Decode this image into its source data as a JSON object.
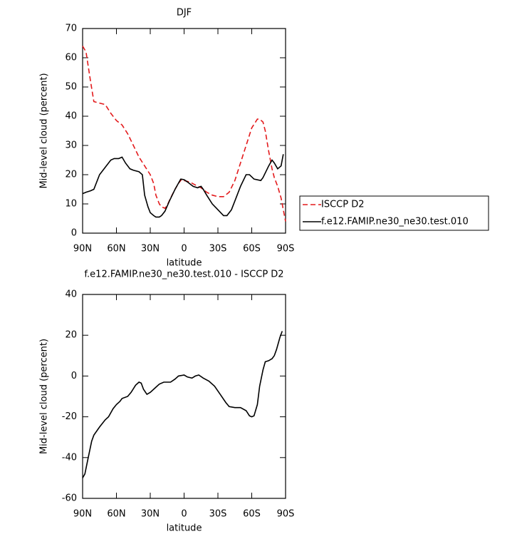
{
  "chart_data": [
    {
      "type": "line",
      "title": "DJF",
      "x_label": "latitude",
      "y_label": "Mid-level cloud (percent)",
      "xlim": [
        90,
        -90
      ],
      "xticks": [
        {
          "value": 90,
          "label": "90N"
        },
        {
          "value": 60,
          "label": "60N"
        },
        {
          "value": 30,
          "label": "30N"
        },
        0,
        {
          "value": -30,
          "label": "30S"
        },
        {
          "value": -60,
          "label": "60S"
        },
        {
          "value": -90,
          "label": "90S"
        }
      ],
      "ylim": [
        0,
        70
      ],
      "yticks": [
        0,
        10,
        20,
        30,
        40,
        50,
        60,
        70
      ],
      "legend": "right",
      "series": [
        {
          "name": "ISCCP D2",
          "color": "#e31a1c",
          "line_style": "dashed",
          "x": [
            90,
            87,
            83,
            80,
            75,
            70,
            65,
            60,
            55,
            50,
            45,
            40,
            35,
            30,
            27,
            25,
            22,
            20,
            17,
            15,
            12,
            8,
            5,
            2,
            0,
            -5,
            -10,
            -15,
            -20,
            -25,
            -30,
            -35,
            -40,
            -45,
            -50,
            -55,
            -60,
            -65,
            -67,
            -70,
            -72,
            -75,
            -78,
            -80,
            -83,
            -86,
            -89,
            -90
          ],
          "values": [
            64,
            62,
            52,
            45,
            44.5,
            44,
            41,
            38.5,
            37,
            34,
            30,
            26,
            23,
            20,
            17,
            13,
            10,
            9,
            8.5,
            9.5,
            12,
            15,
            17,
            18.5,
            18,
            17.5,
            16.5,
            15.5,
            14,
            13,
            12.5,
            12.5,
            14,
            18,
            24,
            30,
            36,
            39,
            39,
            38,
            35,
            28,
            22,
            19,
            16,
            12,
            6,
            4
          ]
        },
        {
          "name": "f.e12.FAMIP.ne30_ne30.test.010",
          "color": "#000000",
          "line_style": "solid",
          "x": [
            90,
            87,
            83,
            80,
            77,
            75,
            70,
            65,
            62,
            58,
            55,
            52,
            48,
            45,
            40,
            37,
            35,
            32,
            30,
            27,
            25,
            22,
            20,
            17,
            13,
            8,
            3,
            0,
            -3,
            -8,
            -12,
            -15,
            -17,
            -20,
            -25,
            -30,
            -35,
            -38,
            -42,
            -45,
            -50,
            -55,
            -58,
            -62,
            -68,
            -70,
            -75,
            -78,
            -80,
            -83,
            -86,
            -88
          ],
          "values": [
            13.5,
            14,
            14.5,
            15,
            18,
            20,
            22.5,
            25,
            25.5,
            25.5,
            26,
            24,
            22,
            21.5,
            21,
            20,
            13,
            9,
            7,
            6,
            5.5,
            5.5,
            6,
            7.5,
            11,
            15,
            18.5,
            18.3,
            17.5,
            16,
            15.5,
            16,
            15,
            13,
            10,
            8,
            6,
            6,
            8,
            11,
            16,
            20,
            20,
            18.5,
            18,
            19,
            23,
            25,
            24,
            22,
            23,
            27
          ]
        }
      ]
    },
    {
      "type": "line",
      "title": "f.e12.FAMIP.ne30_ne30.test.010 - ISCCP D2",
      "x_label": "latitude",
      "y_label": "Mid-level cloud (percent)",
      "xlim": [
        90,
        -90
      ],
      "xticks": [
        {
          "value": 90,
          "label": "90N"
        },
        {
          "value": 60,
          "label": "60N"
        },
        {
          "value": 30,
          "label": "30N"
        },
        0,
        {
          "value": -30,
          "label": "30S"
        },
        {
          "value": -60,
          "label": "60S"
        },
        {
          "value": -90,
          "label": "90S"
        }
      ],
      "ylim": [
        -60,
        40
      ],
      "yticks": [
        -60,
        -40,
        -20,
        0,
        20,
        40
      ],
      "series": [
        {
          "color": "#000000",
          "line_style": "solid",
          "x": [
            90,
            88,
            85,
            82,
            80,
            75,
            70,
            67,
            63,
            60,
            57,
            55,
            50,
            47,
            43,
            40,
            38,
            36,
            33,
            30,
            25,
            22,
            18,
            12,
            8,
            5,
            0,
            -3,
            -7,
            -10,
            -13,
            -17,
            -22,
            -27,
            -32,
            -37,
            -40,
            -45,
            -50,
            -55,
            -58,
            -60,
            -62,
            -65,
            -67,
            -70,
            -72,
            -75,
            -78,
            -80,
            -82,
            -85,
            -87
          ],
          "values": [
            -50,
            -48,
            -40,
            -32,
            -29,
            -25,
            -21.5,
            -20,
            -16,
            -14,
            -12.5,
            -11,
            -10,
            -8,
            -4.5,
            -3,
            -3.5,
            -6.5,
            -9,
            -8,
            -5.5,
            -4,
            -3,
            -3,
            -1.5,
            0,
            0.5,
            -0.5,
            -1,
            0,
            0.5,
            -1,
            -2.5,
            -5,
            -9,
            -13,
            -15,
            -15.5,
            -15.5,
            -17,
            -19.5,
            -20,
            -19.5,
            -14,
            -5,
            3,
            7,
            7.5,
            8.5,
            10,
            13,
            19,
            22
          ]
        }
      ]
    }
  ]
}
